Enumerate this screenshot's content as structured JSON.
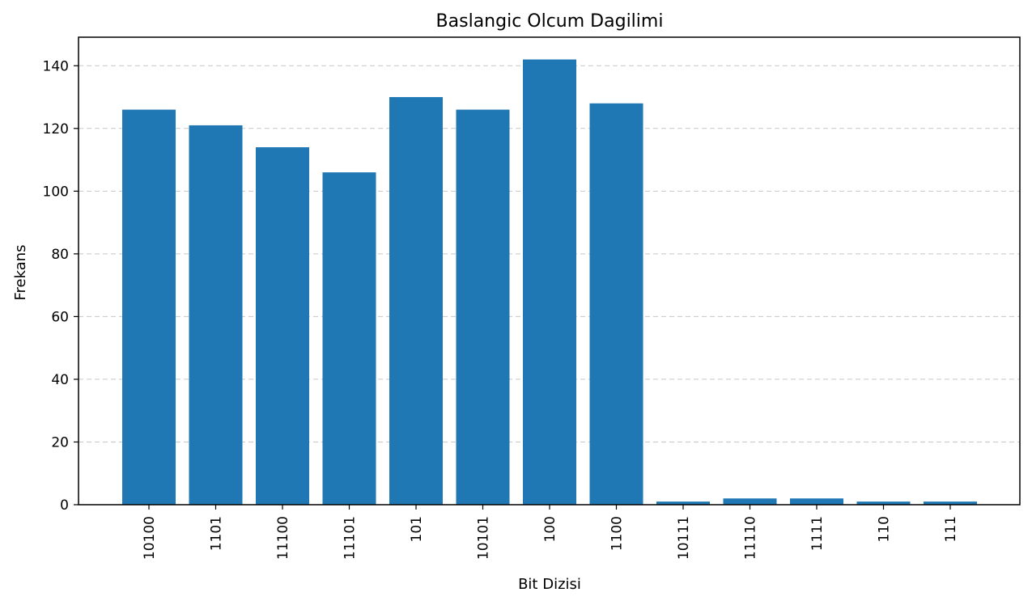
{
  "chart_data": {
    "type": "bar",
    "title": "Baslangic Olcum Dagilimi",
    "xlabel": "Bit Dizisi",
    "ylabel": "Frekans",
    "categories": [
      "10100",
      "1101",
      "11100",
      "11101",
      "101",
      "10101",
      "100",
      "1100",
      "10111",
      "11110",
      "1111",
      "110",
      "111"
    ],
    "values": [
      126,
      121,
      114,
      106,
      130,
      126,
      142,
      128,
      1,
      2,
      2,
      1,
      1
    ],
    "ylim": [
      0,
      149.1
    ],
    "yticks": [
      0,
      20,
      40,
      60,
      80,
      100,
      120,
      140
    ],
    "grid": "y-dashed",
    "bar_color": "#1f77b4"
  }
}
